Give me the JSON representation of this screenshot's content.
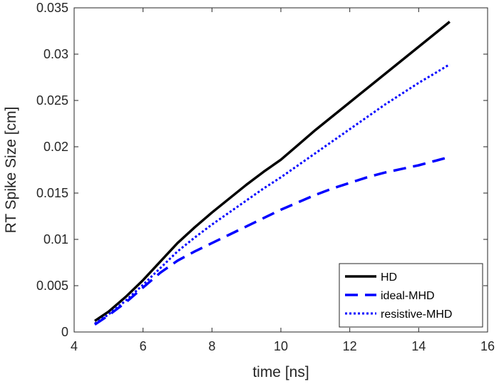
{
  "chart_data": {
    "type": "line",
    "xlabel": "time [ns]",
    "ylabel": "RT Spike Size [cm]",
    "xlim": [
      4,
      16
    ],
    "ylim": [
      0,
      0.035
    ],
    "xticks": [
      4,
      6,
      8,
      10,
      12,
      14,
      16
    ],
    "xtick_labels": [
      "4",
      "6",
      "8",
      "10",
      "12",
      "14",
      "16"
    ],
    "yticks": [
      0,
      0.005,
      0.01,
      0.015,
      0.02,
      0.025,
      0.03,
      0.035
    ],
    "ytick_labels": [
      "0",
      "0.005",
      "0.01",
      "0.015",
      "0.02",
      "0.025",
      "0.03",
      "0.035"
    ],
    "grid": false,
    "legend_position": "bottom-right",
    "series": [
      {
        "name": "HD",
        "color": "#000000",
        "style": "solid",
        "x": [
          4.6,
          5.0,
          5.5,
          6.0,
          6.5,
          7.0,
          7.5,
          8.0,
          8.5,
          9.0,
          9.5,
          10.0,
          10.5,
          11.0,
          11.5,
          12.0,
          12.5,
          13.0,
          13.5,
          14.0,
          14.5,
          14.9
        ],
        "y": [
          0.0012,
          0.0022,
          0.0038,
          0.0056,
          0.0076,
          0.0096,
          0.0113,
          0.0129,
          0.0144,
          0.0159,
          0.0173,
          0.0186,
          0.0202,
          0.0218,
          0.0233,
          0.0248,
          0.0263,
          0.0278,
          0.0293,
          0.0308,
          0.0323,
          0.0335
        ]
      },
      {
        "name": "ideal-MHD",
        "color": "#0000ff",
        "style": "dashed",
        "x": [
          4.6,
          5.0,
          5.5,
          6.0,
          6.5,
          7.0,
          7.5,
          8.0,
          8.5,
          9.0,
          9.5,
          10.0,
          10.5,
          11.0,
          11.5,
          12.0,
          12.5,
          13.0,
          13.5,
          14.0,
          14.5,
          14.9
        ],
        "y": [
          0.0008,
          0.0018,
          0.0032,
          0.0048,
          0.0064,
          0.0077,
          0.0087,
          0.0096,
          0.0105,
          0.0114,
          0.0123,
          0.0132,
          0.014,
          0.0148,
          0.0155,
          0.0161,
          0.0167,
          0.0172,
          0.0176,
          0.018,
          0.0185,
          0.0189
        ]
      },
      {
        "name": "resistive-MHD",
        "color": "#0000ff",
        "style": "dotted",
        "x": [
          4.6,
          5.0,
          5.5,
          6.0,
          6.5,
          7.0,
          7.5,
          8.0,
          8.5,
          9.0,
          9.5,
          10.0,
          10.5,
          11.0,
          11.5,
          12.0,
          12.5,
          13.0,
          13.5,
          14.0,
          14.5,
          14.9
        ],
        "y": [
          0.0009,
          0.0019,
          0.0034,
          0.0051,
          0.0069,
          0.0087,
          0.0102,
          0.0116,
          0.0129,
          0.0142,
          0.0155,
          0.0167,
          0.018,
          0.0193,
          0.0206,
          0.0219,
          0.0232,
          0.0245,
          0.0257,
          0.0269,
          0.028,
          0.0289
        ]
      }
    ]
  }
}
